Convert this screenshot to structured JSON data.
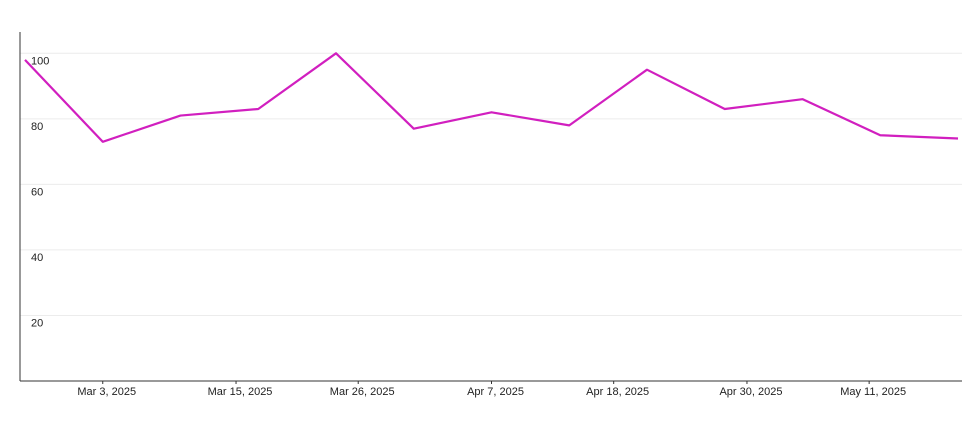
{
  "chart_data": {
    "type": "line",
    "x": [
      "2025-02-24",
      "2025-03-03",
      "2025-03-10",
      "2025-03-17",
      "2025-03-24",
      "2025-03-31",
      "2025-04-07",
      "2025-04-14",
      "2025-04-21",
      "2025-04-28",
      "2025-05-05",
      "2025-05-12",
      "2025-05-19"
    ],
    "series": [
      {
        "color": "#d11fbf",
        "values": [
          98,
          73,
          81,
          83,
          100,
          77,
          82,
          78,
          95,
          83,
          86,
          75,
          74
        ]
      }
    ],
    "xlim": [
      "2025-02-24",
      "2025-05-19"
    ],
    "xticks": [
      {
        "value": "2025-03-03",
        "label": "Mar 3, 2025"
      },
      {
        "value": "2025-03-15",
        "label": "Mar 15, 2025"
      },
      {
        "value": "2025-03-26",
        "label": "Mar 26, 2025"
      },
      {
        "value": "2025-04-07",
        "label": "Apr 7, 2025"
      },
      {
        "value": "2025-04-18",
        "label": "Apr 18, 2025"
      },
      {
        "value": "2025-04-30",
        "label": "Apr 30, 2025"
      },
      {
        "value": "2025-05-11",
        "label": "May 11, 2025"
      }
    ],
    "ylim": [
      0,
      106.5
    ],
    "yticks": [
      20,
      40,
      60,
      80,
      100
    ],
    "grid": true
  }
}
